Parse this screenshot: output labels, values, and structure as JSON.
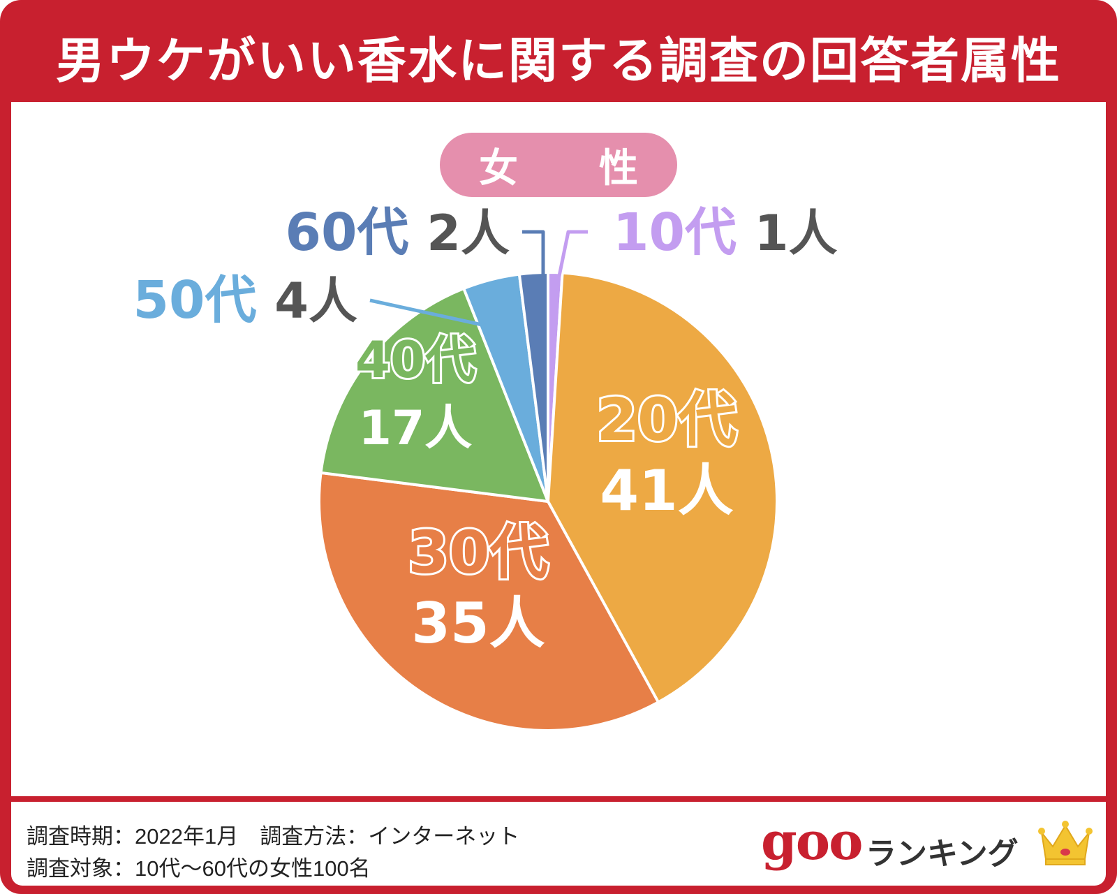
{
  "header": {
    "title": "男ウケがいい香水に関する調査の回答者属性"
  },
  "group_label": "女　性",
  "chart_data": {
    "type": "pie",
    "title": "",
    "unit": "人",
    "slices": [
      {
        "label": "10代",
        "value": 1,
        "color": "#c39df0",
        "label_color": "#c39df0",
        "display": "outside",
        "count_text": "1人"
      },
      {
        "label": "20代",
        "value": 41,
        "color": "#eda944",
        "label_color": "#ffffff",
        "display": "inside",
        "count_text": "41人"
      },
      {
        "label": "30代",
        "value": 35,
        "color": "#e77f47",
        "label_color": "#ffffff",
        "display": "inside",
        "count_text": "35人"
      },
      {
        "label": "40代",
        "value": 17,
        "color": "#7ab760",
        "label_color": "#ffffff",
        "display": "inside",
        "count_text": "17人"
      },
      {
        "label": "50代",
        "value": 4,
        "color": "#6aaddc",
        "label_color": "#6aaddc",
        "display": "outside",
        "count_text": "4人"
      },
      {
        "label": "60代",
        "value": 2,
        "color": "#5a7db5",
        "label_color": "#5a7db5",
        "display": "outside",
        "count_text": "2人"
      }
    ]
  },
  "footer": {
    "line1": "調査時期：2022年1月　調査方法：インターネット",
    "line2": "調査対象：10代〜60代の女性100名",
    "logo_goo": "goo",
    "logo_ranking": "ランキング"
  },
  "colors": {
    "brand_red": "#c8202f",
    "pill_pink": "#e58fad",
    "count_text": "#555555"
  }
}
